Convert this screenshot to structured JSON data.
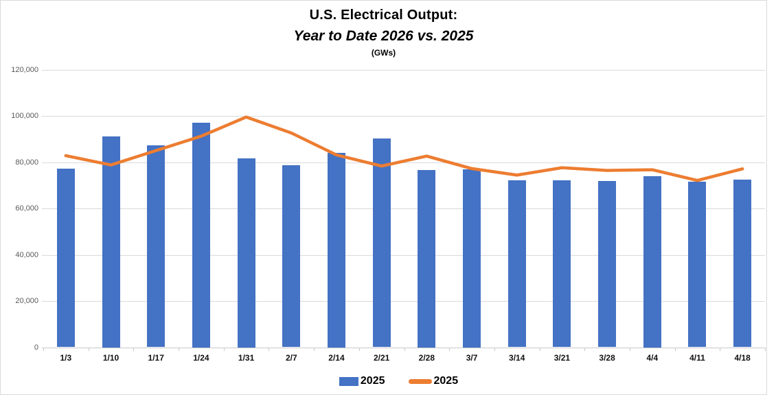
{
  "chart_data": {
    "type": "combo-bar-line",
    "title": "U.S. Electrical Output:",
    "subtitle": "Year to Date 2026 vs. 2025",
    "units_label": "(GWs)",
    "categories": [
      "1/3",
      "1/10",
      "1/17",
      "1/24",
      "1/31",
      "2/7",
      "2/14",
      "2/21",
      "2/28",
      "3/7",
      "3/14",
      "3/21",
      "3/28",
      "4/4",
      "4/11",
      "4/18"
    ],
    "series": [
      {
        "name": "2025",
        "type": "bar",
        "color": "#4472C4",
        "values": [
          77300,
          91000,
          87200,
          97000,
          81500,
          78800,
          84000,
          90300,
          76500,
          77000,
          72200,
          72200,
          71900,
          74000,
          71600,
          72300
        ]
      },
      {
        "name": "2025",
        "type": "line",
        "color": "#ED7D31",
        "values": [
          82800,
          78800,
          85000,
          91200,
          99500,
          92600,
          83100,
          78300,
          82600,
          77200,
          74400,
          77600,
          76400,
          76700,
          72100,
          77100
        ]
      }
    ],
    "ylim": [
      0,
      120000
    ],
    "ytick_step": 20000,
    "ytick_labels": [
      "0",
      "20,000",
      "40,000",
      "60,000",
      "80,000",
      "100,000",
      "120,000"
    ],
    "grid": true,
    "legend_position": "bottom",
    "styles": {
      "bar_color": "#4472C4",
      "line_color": "#ED7D31",
      "grid_color": "#d9d9d9",
      "axis_color": "#c9c9c9",
      "ytick_label_color": "#595959",
      "xtick_label_color": "#111111"
    }
  }
}
